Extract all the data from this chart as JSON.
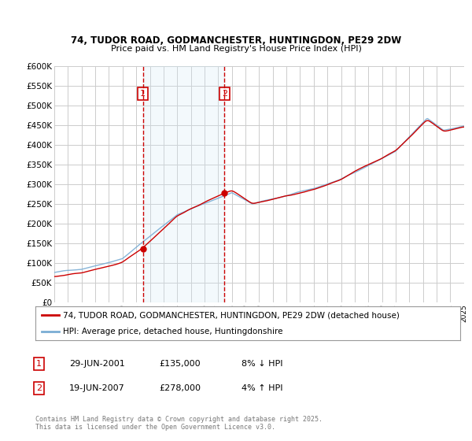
{
  "title1": "74, TUDOR ROAD, GODMANCHESTER, HUNTINGDON, PE29 2DW",
  "title2": "Price paid vs. HM Land Registry's House Price Index (HPI)",
  "background_color": "#ffffff",
  "grid_color": "#cccccc",
  "line1_color": "#cc0000",
  "line2_color": "#7aadd4",
  "vline_color": "#cc0000",
  "shade_color": "#d0e8f5",
  "sale1_year": 2001.49,
  "sale1_price": 135000,
  "sale2_year": 2007.47,
  "sale2_price": 278000,
  "legend1": "74, TUDOR ROAD, GODMANCHESTER, HUNTINGDON, PE29 2DW (detached house)",
  "legend2": "HPI: Average price, detached house, Huntingdonshire",
  "footer": "Contains HM Land Registry data © Crown copyright and database right 2025.\nThis data is licensed under the Open Government Licence v3.0.",
  "table": [
    {
      "num": "1",
      "date": "29-JUN-2001",
      "price": "£135,000",
      "hpi": "8% ↓ HPI"
    },
    {
      "num": "2",
      "date": "19-JUN-2007",
      "price": "£278,000",
      "hpi": "4% ↑ HPI"
    }
  ],
  "xmin": 1995,
  "xmax": 2025,
  "ymin": 0,
  "ymax": 600000,
  "yticks": [
    0,
    50000,
    100000,
    150000,
    200000,
    250000,
    300000,
    350000,
    400000,
    450000,
    500000,
    550000,
    600000
  ],
  "seed": 42,
  "n_points": 361
}
